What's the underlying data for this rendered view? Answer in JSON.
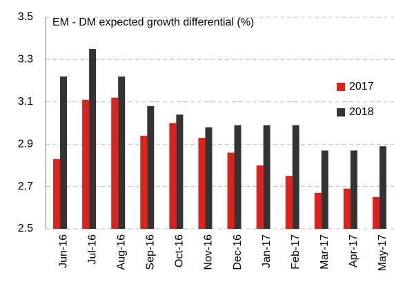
{
  "chart_data": {
    "type": "bar",
    "title": "EM - DM expected growth differential (%)",
    "categories": [
      "Jun-16",
      "Jul-16",
      "Aug-16",
      "Sep-16",
      "Oct-16",
      "Nov-16",
      "Dec-16",
      "Jan-17",
      "Feb-17",
      "Mar-17",
      "Apr-17",
      "May-17"
    ],
    "series": [
      {
        "name": "2017",
        "color": "#e0201b",
        "values": [
          2.83,
          3.11,
          3.12,
          2.94,
          3.0,
          2.93,
          2.86,
          2.8,
          2.75,
          2.67,
          2.69,
          2.65
        ]
      },
      {
        "name": "2018",
        "color": "#333333",
        "values": [
          3.22,
          3.35,
          3.22,
          3.08,
          3.04,
          2.98,
          2.99,
          2.99,
          2.99,
          2.87,
          2.87,
          2.89
        ]
      }
    ],
    "ylim": [
      2.5,
      3.5
    ],
    "yticks": [
      2.5,
      2.7,
      2.9,
      3.1,
      3.3,
      3.5
    ],
    "grid": true,
    "legend": "right"
  }
}
